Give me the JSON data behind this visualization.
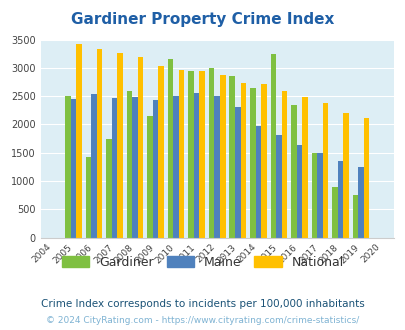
{
  "title": "Gardiner Property Crime Index",
  "years": [
    2004,
    2005,
    2006,
    2007,
    2008,
    2009,
    2010,
    2011,
    2012,
    2013,
    2014,
    2015,
    2016,
    2017,
    2018,
    2019,
    2020
  ],
  "gardiner": [
    0,
    2500,
    1430,
    1750,
    2600,
    2150,
    3150,
    2950,
    3000,
    2850,
    2650,
    3250,
    2350,
    1500,
    900,
    750,
    0
  ],
  "maine": [
    0,
    2450,
    2540,
    2460,
    2480,
    2430,
    2500,
    2550,
    2500,
    2300,
    1980,
    1810,
    1630,
    1500,
    1350,
    1240,
    0
  ],
  "national": [
    0,
    3420,
    3340,
    3270,
    3200,
    3040,
    2960,
    2940,
    2870,
    2730,
    2720,
    2590,
    2490,
    2380,
    2200,
    2110,
    0
  ],
  "gardiner_color": "#7fc041",
  "maine_color": "#4f81bd",
  "national_color": "#ffc000",
  "bg_color": "#ddeef5",
  "title_color": "#1f5fa6",
  "ylim": [
    0,
    3500
  ],
  "yticks": [
    0,
    500,
    1000,
    1500,
    2000,
    2500,
    3000,
    3500
  ],
  "subtitle": "Crime Index corresponds to incidents per 100,000 inhabitants",
  "footer": "© 2024 CityRating.com - https://www.cityrating.com/crime-statistics/",
  "legend_text_color": "#333333",
  "subtitle_color": "#1a5276",
  "footer_color": "#7fb3d3",
  "bar_width": 0.27
}
